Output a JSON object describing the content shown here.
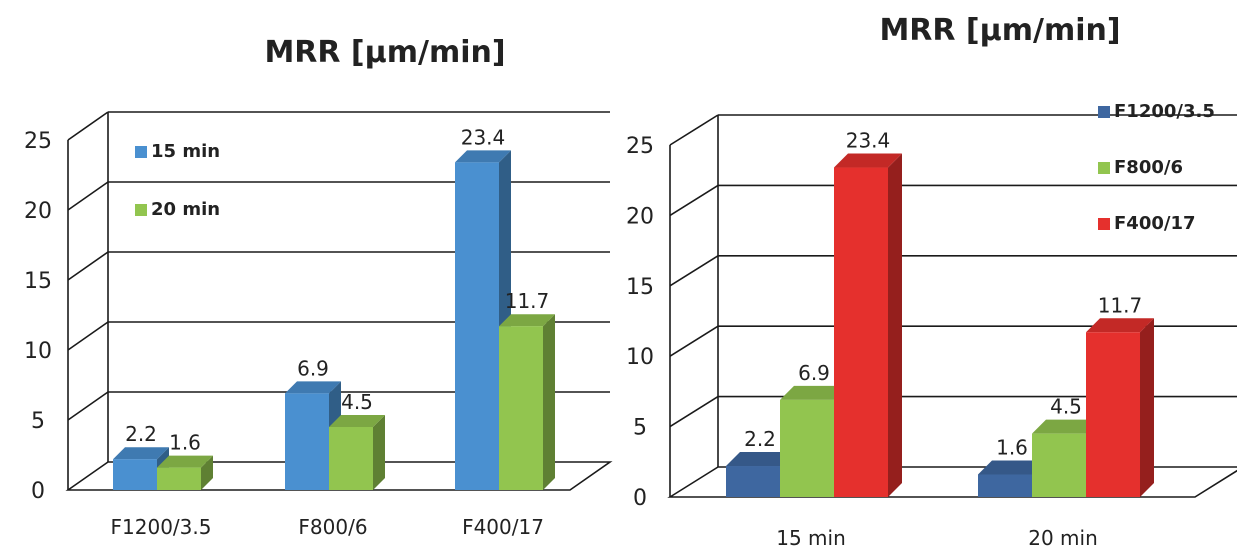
{
  "chart_data": [
    {
      "type": "bar",
      "title": "MRR [µm/min]",
      "categories": [
        "F1200/3.5",
        "F800/6",
        "F400/17"
      ],
      "series": [
        {
          "name": "15 min",
          "values": [
            2.2,
            6.9,
            23.4
          ],
          "color": "#4a90d0"
        },
        {
          "name": "20 min",
          "values": [
            1.6,
            4.5,
            11.7
          ],
          "color": "#92c54f"
        }
      ],
      "yticks": [
        "0",
        "5",
        "10",
        "15",
        "20",
        "25"
      ],
      "ylim": [
        0,
        25
      ],
      "grid": true,
      "legend_position": "top-left"
    },
    {
      "type": "bar",
      "title": "MRR [µm/min]",
      "categories": [
        "15 min",
        "20 min"
      ],
      "series": [
        {
          "name": "F1200/3.5",
          "values": [
            2.2,
            1.6
          ],
          "color": "#3e67a0"
        },
        {
          "name": "F800/6",
          "values": [
            6.9,
            4.5
          ],
          "color": "#92c54f"
        },
        {
          "name": "F400/17",
          "values": [
            23.4,
            11.7
          ],
          "color": "#e5302d"
        }
      ],
      "yticks": [
        "0",
        "5",
        "10",
        "15",
        "20",
        "25"
      ],
      "ylim": [
        0,
        25
      ],
      "grid": true,
      "legend_position": "top-right"
    }
  ]
}
